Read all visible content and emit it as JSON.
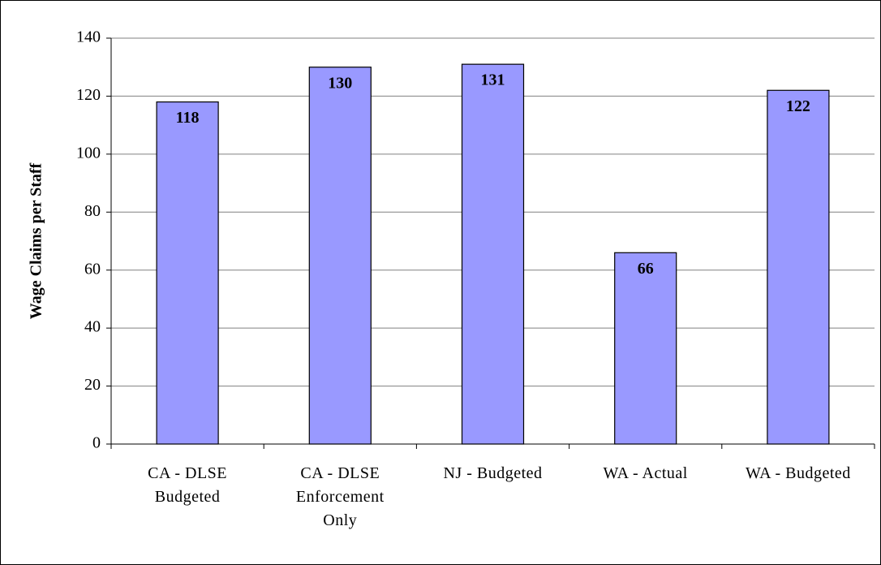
{
  "chart_data": {
    "type": "bar",
    "y_axis_label": "Wage Claims per Staff",
    "categories": [
      "CA - DLSE Budgeted",
      "CA - DLSE Enforcement Only",
      "NJ - Budgeted",
      "WA - Actual",
      "WA - Budgeted"
    ],
    "values": [
      118,
      130,
      131,
      66,
      122
    ],
    "color": "#9999ff",
    "ylim": [
      0,
      140
    ],
    "yticks": [
      0,
      20,
      40,
      60,
      80,
      100,
      120,
      140
    ],
    "grid": true
  }
}
